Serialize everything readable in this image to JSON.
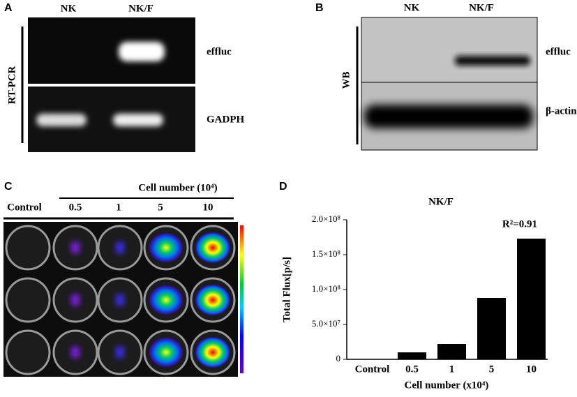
{
  "panels": {
    "a": {
      "label": "A",
      "lanes": [
        "NK",
        "NK/F"
      ],
      "side_label": "RT-PCR",
      "rows": [
        "effluc",
        "GADPH"
      ]
    },
    "b": {
      "label": "B",
      "lanes": [
        "NK",
        "NK/F"
      ],
      "side_label": "WB",
      "rows": [
        "effluc",
        "β-actin"
      ]
    },
    "c": {
      "label": "C",
      "header": "Cell number (10⁴)",
      "columns": [
        "Control",
        "0.5",
        "1",
        "5",
        "10"
      ]
    }
  },
  "chart_data": {
    "type": "bar",
    "panel_label": "D",
    "title": "NK/F",
    "annotation": "R²=0.91",
    "categories": [
      "Control",
      "0.5",
      "1",
      "5",
      "10"
    ],
    "values": [
      0,
      10000000,
      22000000,
      88000000,
      173000000
    ],
    "color": "#000000",
    "ylim": [
      0,
      200000000
    ],
    "yticks": [
      0,
      {
        "value": 50000000,
        "label": "5.0×10⁷"
      },
      {
        "value": 100000000,
        "label": "1.0×10⁸"
      },
      {
        "value": 150000000,
        "label": "1.5×10⁸"
      },
      {
        "value": 200000000,
        "label": "2.0×10⁸"
      }
    ],
    "ylabel": "Total Flux[p/s]",
    "xlabel": "Cell number (x10⁴)"
  }
}
